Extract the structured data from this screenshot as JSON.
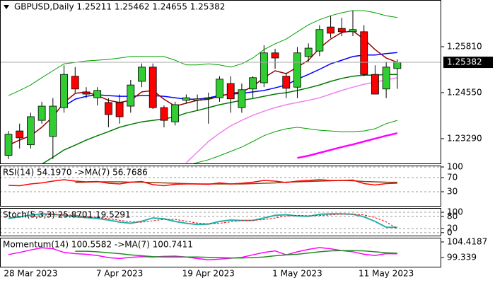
{
  "chart_data": [
    {
      "type": "candlestick",
      "title": "GBPUSD,Daily  1.25211 1.25462 1.24655 1.25382",
      "categories": [
        null,
        null,
        "28 Mar 2023",
        null,
        null,
        null,
        null,
        null,
        null,
        null,
        "7 Apr 2023",
        null,
        null,
        null,
        null,
        null,
        null,
        null,
        "19 Apr 2023",
        null,
        null,
        null,
        null,
        null,
        null,
        null,
        "1 May 2023",
        null,
        null,
        null,
        null,
        null,
        null,
        null,
        "11 May 2023",
        null
      ],
      "open": [
        1.2283,
        1.235,
        1.2312,
        1.2379,
        1.2335,
        1.2414,
        1.25,
        1.2457,
        1.2441,
        1.2428,
        1.2428,
        1.2418,
        1.2486,
        1.2525,
        1.2414,
        1.2375,
        1.2434,
        1.2434,
        1.2438,
        1.2441,
        1.248,
        1.2414,
        1.2465,
        1.2482,
        1.2564,
        1.25,
        1.247,
        1.2554,
        1.2569,
        1.2635,
        1.2631,
        1.2622,
        1.2622,
        1.2505,
        1.2465,
        1.25211
      ],
      "high": [
        1.235,
        1.237,
        1.24,
        1.243,
        1.244,
        1.253,
        1.2525,
        1.247,
        1.247,
        1.244,
        1.245,
        1.249,
        1.2535,
        1.2535,
        1.242,
        1.243,
        1.245,
        1.245,
        1.2455,
        1.25,
        1.25,
        1.248,
        1.25,
        1.2585,
        1.2575,
        1.251,
        1.258,
        1.259,
        1.264,
        1.2665,
        1.266,
        1.268,
        1.264,
        1.253,
        1.254,
        1.25462
      ],
      "low": [
        1.2273,
        1.2302,
        1.2302,
        1.237,
        1.2273,
        1.24,
        1.2455,
        1.244,
        1.242,
        1.236,
        1.237,
        1.24,
        1.247,
        1.241,
        1.236,
        1.2365,
        1.2425,
        1.2405,
        1.237,
        1.243,
        1.24,
        1.24,
        1.244,
        1.247,
        1.252,
        1.244,
        1.244,
        1.254,
        1.2555,
        1.2605,
        1.261,
        1.261,
        1.25,
        1.245,
        1.244,
        1.24655
      ],
      "close": [
        1.2341,
        1.2331,
        1.2389,
        1.2418,
        1.2418,
        1.2505,
        1.2465,
        1.2451,
        1.2461,
        1.2395,
        1.2389,
        1.2476,
        1.2525,
        1.2414,
        1.2379,
        1.2422,
        1.2441,
        1.2438,
        1.2441,
        1.2492,
        1.2438,
        1.2463,
        1.2496,
        1.2564,
        1.255,
        1.2467,
        1.2564,
        1.2577,
        1.2628,
        1.2618,
        1.2622,
        1.2628,
        1.2505,
        1.2451,
        1.2525,
        1.25382
      ],
      "up_color": "#32cd32",
      "down_color": "#ff0000",
      "lines": [
        {
          "color": "#00a000",
          "width": 1,
          "values": [
            1.2447,
            1.2461,
            1.2476,
            1.2496,
            1.2515,
            1.2534,
            1.2538,
            1.2542,
            1.2544,
            1.2546,
            1.255,
            1.2554,
            1.2554,
            1.2554,
            1.2554,
            1.2544,
            1.2531,
            1.2531,
            1.2534,
            1.2531,
            1.2525,
            1.2534,
            1.255,
            1.2573,
            1.2589,
            1.2602,
            1.2622,
            1.2641,
            1.2655,
            1.2666,
            1.2674,
            1.268,
            1.268,
            1.2674,
            1.2666,
            1.2661
          ]
        },
        {
          "color": "#00a000",
          "width": 1,
          "values": [
            1.2224,
            1.2224,
            1.2228,
            1.2228,
            1.2224,
            1.222,
            1.2224,
            1.2228,
            1.2232,
            1.2234,
            1.2234,
            1.2236,
            1.224,
            1.224,
            1.2243,
            1.2247,
            1.2255,
            1.2263,
            1.2271,
            1.2282,
            1.2294,
            1.2306,
            1.2321,
            1.2337,
            1.2348,
            1.2356,
            1.236,
            1.2356,
            1.2352,
            1.235,
            1.2348,
            1.2348,
            1.235,
            1.2356,
            1.237,
            1.2379
          ]
        },
        {
          "color": "#ee82ee",
          "width": 1.5,
          "values": [
            null,
            null,
            null,
            null,
            null,
            null,
            null,
            null,
            null,
            null,
            null,
            null,
            null,
            null,
            null,
            null,
            1.2263,
            1.2292,
            1.2321,
            1.2344,
            1.2364,
            1.2379,
            1.2393,
            1.2404,
            1.2414,
            1.2422,
            1.2428,
            1.2434,
            1.2441,
            1.2451,
            1.2461,
            1.247,
            1.2478,
            1.2484,
            1.249,
            1.2496
          ]
        },
        {
          "color": "#ff00ff",
          "width": 2.5,
          "values": [
            null,
            null,
            null,
            null,
            null,
            null,
            null,
            null,
            null,
            null,
            null,
            null,
            null,
            null,
            null,
            null,
            null,
            null,
            null,
            null,
            null,
            null,
            null,
            null,
            null,
            null,
            1.2276,
            1.2282,
            1.229,
            1.2298,
            1.2306,
            1.2313,
            1.2321,
            1.2329,
            1.2337,
            1.2344
          ]
        },
        {
          "color": "#007a00",
          "width": 1.5,
          "values": [
            null,
            null,
            null,
            1.2259,
            1.2278,
            1.2298,
            1.2311,
            1.2325,
            1.2337,
            1.2348,
            1.236,
            1.2368,
            1.2375,
            1.2379,
            1.2383,
            1.2389,
            1.2399,
            1.2406,
            1.2414,
            1.2422,
            1.2428,
            1.2434,
            1.2439,
            1.2445,
            1.2451,
            1.2455,
            1.2461,
            1.2468,
            1.2476,
            1.2486,
            1.2494,
            1.25,
            1.2503,
            1.2503,
            1.2505,
            1.2505
          ]
        },
        {
          "color": "#0000ff",
          "width": 1.5,
          "values": [
            null,
            null,
            null,
            null,
            null,
            1.2418,
            1.2437,
            1.2445,
            1.2449,
            1.2447,
            1.2445,
            1.2445,
            1.2447,
            1.2447,
            1.2445,
            1.2441,
            1.2437,
            1.2437,
            1.2441,
            1.2447,
            1.2451,
            1.2453,
            1.2457,
            1.2461,
            1.2468,
            1.2476,
            1.2492,
            1.2505,
            1.2519,
            1.2534,
            1.2544,
            1.2554,
            1.2558,
            1.2558,
            1.2562,
            1.2565
          ]
        },
        {
          "color": "#990000",
          "width": 1.5,
          "values": [
            1.2311,
            1.2325,
            1.2337,
            1.236,
            1.2389,
            1.2428,
            1.2453,
            1.2457,
            1.2447,
            1.2434,
            1.2428,
            1.2434,
            1.2457,
            1.2461,
            1.2437,
            1.2418,
            1.2426,
            1.2434,
            1.2437,
            1.2445,
            1.2453,
            1.2457,
            1.2472,
            1.2496,
            1.2515,
            1.2507,
            1.2525,
            1.2544,
            1.2577,
            1.2602,
            1.262,
            1.2624,
            1.2602,
            1.2573,
            1.255,
            1.2538
          ]
        }
      ],
      "ylim": [
        1.2259,
        1.2709
      ],
      "yticks": [
        {
          "value": 1.2581,
          "label": "1.25810"
        },
        {
          "value": 1.2455,
          "label": "1.24550"
        },
        {
          "value": 1.2329,
          "label": "1.23290"
        }
      ],
      "grid": false
    },
    {
      "type": "line",
      "title": "RSI(14) 54.1970  ->MA(7) 56.7686",
      "series": [
        {
          "color": "#8b4513",
          "values": [
            null,
            null,
            null,
            null,
            null,
            null,
            56,
            57,
            58,
            58,
            58,
            57,
            57,
            56,
            55,
            54,
            53,
            52,
            52,
            52,
            52,
            52,
            53,
            54,
            55,
            57,
            58,
            59,
            60,
            61,
            62,
            61,
            59,
            58,
            57,
            56.7686
          ]
        },
        {
          "color": "#ff0000",
          "values": [
            48,
            47,
            52,
            55,
            60,
            64,
            60,
            58,
            59,
            54,
            52,
            57,
            59,
            50,
            47,
            51,
            52,
            52,
            51,
            55,
            52,
            54,
            57,
            62,
            60,
            56,
            60,
            62,
            64,
            62,
            62,
            63,
            53,
            49,
            53,
            54.197
          ]
        }
      ],
      "ylim": [
        -12,
        104
      ],
      "yticks": [
        100,
        70,
        30
      ],
      "grid": true
    },
    {
      "type": "line",
      "title": "Stoch(5,3,3) 25.8701 19.5291",
      "series": [
        {
          "color": "#20b2aa",
          "width": 2,
          "values": [
            70,
            78,
            86,
            92,
            90,
            85,
            78,
            74,
            70,
            62,
            52,
            46,
            56,
            72,
            68,
            55,
            46,
            40,
            42,
            55,
            62,
            60,
            60,
            72,
            85,
            88,
            82,
            80,
            90,
            92,
            92,
            90,
            78,
            55,
            27,
            25.8701
          ]
        },
        {
          "color": "#ff0000",
          "width": 1,
          "dash": true,
          "values": [
            null,
            null,
            78,
            85,
            89,
            89,
            84,
            79,
            74,
            69,
            61,
            53,
            51,
            58,
            65,
            65,
            56,
            47,
            43,
            46,
            53,
            59,
            61,
            64,
            72,
            82,
            85,
            83,
            84,
            87,
            91,
            91,
            87,
            74,
            53,
            19.5291
          ]
        }
      ],
      "ylim": [
        -18,
        121
      ],
      "yticks": [
        100,
        80,
        20,
        0
      ],
      "grid": true
    },
    {
      "type": "line",
      "title": "Momentum(14) 100.5582  ->MA(7) 100.7411",
      "series": [
        {
          "color": "#ff00ff",
          "values": [
            100.3,
            101.0,
            101.8,
            102.5,
            102.2,
            101.0,
            100.6,
            100.4,
            100.0,
            99.3,
            99.0,
            99.4,
            99.6,
            99.5,
            99.7,
            99.8,
            99.5,
            99.0,
            98.6,
            98.8,
            99.1,
            99.4,
            100.2,
            101.0,
            101.5,
            100.2,
            101.2,
            102.0,
            102.6,
            102.2,
            101.6,
            101.2,
            100.4,
            100.0,
            100.6,
            100.5582
          ]
        },
        {
          "color": "#228b22",
          "values": [
            null,
            null,
            null,
            null,
            null,
            null,
            101.4,
            101.4,
            101.2,
            100.9,
            100.6,
            100.2,
            99.9,
            99.6,
            99.5,
            99.5,
            99.5,
            99.5,
            99.4,
            99.3,
            99.2,
            99.2,
            99.3,
            99.5,
            99.9,
            100.2,
            100.4,
            100.8,
            101.2,
            101.5,
            101.6,
            101.6,
            101.5,
            101.2,
            100.9,
            100.7411
          ]
        }
      ],
      "ylim": [
        96.1,
        105.8
      ],
      "yticks": [
        104.4187,
        99.339
      ],
      "grid": false
    }
  ]
}
